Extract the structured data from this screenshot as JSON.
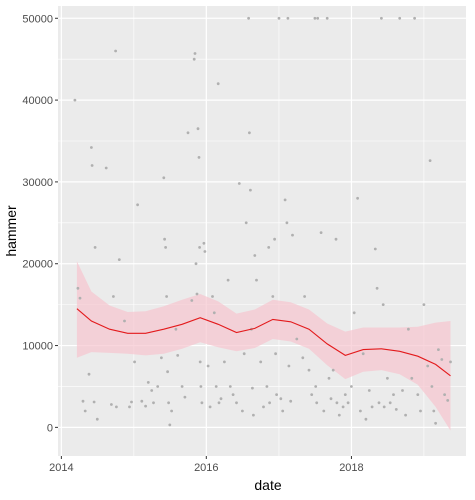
{
  "chart_data": {
    "type": "scatter",
    "title": "",
    "xlabel": "date",
    "ylabel": "hammer",
    "xlim": [
      "2013-12-15",
      "2019-08-01"
    ],
    "ylim": [
      -3500,
      51500
    ],
    "grid": true,
    "x_ticks": [
      {
        "date": "2014-01-01",
        "label": "2014"
      },
      {
        "date": "2016-01-01",
        "label": "2016"
      },
      {
        "date": "2018-01-01",
        "label": "2018"
      }
    ],
    "y_ticks": [
      {
        "value": 0,
        "label": "0"
      },
      {
        "value": 10000,
        "label": "10000"
      },
      {
        "value": 20000,
        "label": "20000"
      },
      {
        "value": 30000,
        "label": "30000"
      },
      {
        "value": 40000,
        "label": "40000"
      },
      {
        "value": 50000,
        "label": "50000"
      }
    ],
    "colors": {
      "panel": "#ebebeb",
      "grid": "#ffffff",
      "points": "#b0b0b0",
      "smooth_line": "#e31a1c",
      "ribbon": "#f7c4cf"
    },
    "points": [
      [
        "2014-03-10",
        40000
      ],
      [
        "2014-03-25",
        17000
      ],
      [
        "2014-04-05",
        15800
      ],
      [
        "2014-04-20",
        3200
      ],
      [
        "2014-05-01",
        2000
      ],
      [
        "2014-05-20",
        6500
      ],
      [
        "2014-06-01",
        34200
      ],
      [
        "2014-06-05",
        32000
      ],
      [
        "2014-06-20",
        22000
      ],
      [
        "2014-07-01",
        1000
      ],
      [
        "2014-06-15",
        3100
      ],
      [
        "2014-08-15",
        31700
      ],
      [
        "2014-09-10",
        2800
      ],
      [
        "2014-10-01",
        46000
      ],
      [
        "2014-10-05",
        2500
      ],
      [
        "2014-10-20",
        20500
      ],
      [
        "2014-09-20",
        16000
      ],
      [
        "2014-11-15",
        13000
      ],
      [
        "2014-12-10",
        2500
      ],
      [
        "2014-12-20",
        3100
      ],
      [
        "2015-01-05",
        8000
      ],
      [
        "2015-01-20",
        27200
      ],
      [
        "2015-02-10",
        3200
      ],
      [
        "2015-03-01",
        2600
      ],
      [
        "2015-03-15",
        5500
      ],
      [
        "2015-04-01",
        4500
      ],
      [
        "2015-04-10",
        3000
      ],
      [
        "2015-05-01",
        5000
      ],
      [
        "2015-05-20",
        8500
      ],
      [
        "2015-06-01",
        30500
      ],
      [
        "2015-06-05",
        23000
      ],
      [
        "2015-06-10",
        22000
      ],
      [
        "2015-06-15",
        16000
      ],
      [
        "2015-06-20",
        6800
      ],
      [
        "2015-06-25",
        3000
      ],
      [
        "2015-07-01",
        300
      ],
      [
        "2015-07-10",
        2000
      ],
      [
        "2015-08-01",
        12000
      ],
      [
        "2015-08-10",
        8800
      ],
      [
        "2015-09-01",
        5000
      ],
      [
        "2015-09-15",
        3700
      ],
      [
        "2015-10-01",
        36000
      ],
      [
        "2015-10-20",
        15500
      ],
      [
        "2015-11-01",
        45000
      ],
      [
        "2015-11-05",
        45700
      ],
      [
        "2015-11-10",
        20000
      ],
      [
        "2015-11-15",
        16300
      ],
      [
        "2015-11-20",
        36500
      ],
      [
        "2015-11-25",
        33000
      ],
      [
        "2015-11-28",
        22000
      ],
      [
        "2015-12-01",
        8000
      ],
      [
        "2015-12-05",
        5000
      ],
      [
        "2015-12-10",
        3000
      ],
      [
        "2015-12-20",
        22500
      ],
      [
        "2015-12-25",
        21500
      ],
      [
        "2016-01-10",
        7500
      ],
      [
        "2016-01-20",
        2500
      ],
      [
        "2016-02-01",
        16000
      ],
      [
        "2016-02-10",
        14000
      ],
      [
        "2016-02-20",
        5000
      ],
      [
        "2016-03-01",
        42000
      ],
      [
        "2016-03-05",
        3000
      ],
      [
        "2016-03-15",
        3500
      ],
      [
        "2016-04-01",
        8000
      ],
      [
        "2016-04-20",
        18000
      ],
      [
        "2016-05-01",
        5000
      ],
      [
        "2016-05-15",
        4000
      ],
      [
        "2016-06-01",
        3000
      ],
      [
        "2016-06-15",
        29800
      ],
      [
        "2016-07-01",
        2000
      ],
      [
        "2016-07-10",
        9000
      ],
      [
        "2016-07-20",
        25000
      ],
      [
        "2016-08-01",
        50000
      ],
      [
        "2016-08-05",
        36000
      ],
      [
        "2016-08-10",
        29000
      ],
      [
        "2016-08-15",
        12000
      ],
      [
        "2016-08-20",
        4800
      ],
      [
        "2016-08-25",
        1500
      ],
      [
        "2016-09-01",
        21000
      ],
      [
        "2016-09-10",
        18000
      ],
      [
        "2016-10-01",
        8000
      ],
      [
        "2016-10-15",
        2500
      ],
      [
        "2016-11-01",
        5000
      ],
      [
        "2016-11-10",
        22000
      ],
      [
        "2016-11-15",
        3000
      ],
      [
        "2016-12-01",
        16000
      ],
      [
        "2016-12-10",
        23000
      ],
      [
        "2016-12-15",
        9000
      ],
      [
        "2016-12-20",
        4000
      ],
      [
        "2017-01-01",
        50000
      ],
      [
        "2017-01-10",
        3500
      ],
      [
        "2017-01-20",
        2000
      ],
      [
        "2017-02-01",
        27800
      ],
      [
        "2017-02-10",
        25000
      ],
      [
        "2017-02-15",
        50000
      ],
      [
        "2017-02-20",
        7500
      ],
      [
        "2017-03-01",
        3200
      ],
      [
        "2017-03-10",
        23500
      ],
      [
        "2017-04-01",
        10800
      ],
      [
        "2017-05-01",
        8500
      ],
      [
        "2017-05-10",
        16000
      ],
      [
        "2017-06-01",
        7000
      ],
      [
        "2017-06-15",
        4000
      ],
      [
        "2017-07-01",
        50000
      ],
      [
        "2017-07-05",
        5000
      ],
      [
        "2017-07-10",
        3000
      ],
      [
        "2017-07-15",
        50000
      ],
      [
        "2017-08-01",
        23800
      ],
      [
        "2017-08-15",
        2000
      ],
      [
        "2017-09-01",
        50000
      ],
      [
        "2017-09-10",
        6000
      ],
      [
        "2017-09-20",
        3500
      ],
      [
        "2017-10-01",
        7000
      ],
      [
        "2017-10-15",
        23000
      ],
      [
        "2017-10-20",
        3000
      ],
      [
        "2017-11-01",
        1500
      ],
      [
        "2017-11-20",
        2500
      ],
      [
        "2017-12-01",
        4000
      ],
      [
        "2017-12-15",
        3000
      ],
      [
        "2018-01-01",
        5000
      ],
      [
        "2018-01-15",
        14000
      ],
      [
        "2018-02-01",
        28000
      ],
      [
        "2018-02-15",
        2000
      ],
      [
        "2018-03-01",
        9000
      ],
      [
        "2018-03-15",
        1000
      ],
      [
        "2018-04-01",
        4500
      ],
      [
        "2018-04-15",
        2500
      ],
      [
        "2018-05-01",
        21800
      ],
      [
        "2018-05-10",
        17000
      ],
      [
        "2018-05-20",
        3000
      ],
      [
        "2018-06-01",
        50000
      ],
      [
        "2018-06-10",
        15000
      ],
      [
        "2018-06-15",
        2500
      ],
      [
        "2018-07-01",
        6000
      ],
      [
        "2018-07-15",
        3000
      ],
      [
        "2018-08-01",
        4000
      ],
      [
        "2018-08-15",
        2200
      ],
      [
        "2018-09-01",
        50000
      ],
      [
        "2018-09-15",
        4500
      ],
      [
        "2018-10-01",
        1500
      ],
      [
        "2018-10-15",
        12000
      ],
      [
        "2018-11-01",
        6000
      ],
      [
        "2018-11-15",
        50000
      ],
      [
        "2018-12-01",
        4000
      ],
      [
        "2018-12-15",
        2000
      ],
      [
        "2019-01-01",
        15000
      ],
      [
        "2019-01-20",
        7500
      ],
      [
        "2019-02-01",
        32600
      ],
      [
        "2019-02-10",
        5000
      ],
      [
        "2019-02-20",
        2000
      ],
      [
        "2019-03-01",
        500
      ],
      [
        "2019-03-15",
        9500
      ],
      [
        "2019-04-01",
        8300
      ],
      [
        "2019-04-15",
        4000
      ],
      [
        "2019-05-01",
        3300
      ],
      [
        "2019-05-15",
        8000
      ]
    ],
    "smooth": {
      "x": [
        "2014-03-20",
        "2014-06-01",
        "2014-09-01",
        "2014-12-01",
        "2015-03-01",
        "2015-06-01",
        "2015-09-01",
        "2015-12-01",
        "2016-03-01",
        "2016-06-01",
        "2016-09-01",
        "2016-12-01",
        "2017-03-01",
        "2017-06-01",
        "2017-09-01",
        "2017-12-01",
        "2018-03-01",
        "2018-06-01",
        "2018-09-01",
        "2018-12-01",
        "2019-03-01",
        "2019-05-15"
      ],
      "fit": [
        14500,
        13000,
        12000,
        11500,
        11500,
        12000,
        12600,
        13400,
        12600,
        11600,
        12100,
        13200,
        12900,
        12000,
        10200,
        8800,
        9500,
        9600,
        9300,
        8700,
        7700,
        6300
      ],
      "lower": [
        8500,
        9200,
        9100,
        9000,
        8800,
        9000,
        9600,
        10400,
        9800,
        9300,
        9700,
        10800,
        10500,
        9600,
        7600,
        5900,
        6800,
        7000,
        6500,
        5200,
        2500,
        -400
      ],
      "upper": [
        20300,
        16600,
        14900,
        14100,
        14200,
        14800,
        15600,
        16300,
        15400,
        13900,
        14400,
        15600,
        15300,
        14400,
        12700,
        11700,
        12200,
        12200,
        12200,
        12300,
        12800,
        13000
      ]
    }
  }
}
